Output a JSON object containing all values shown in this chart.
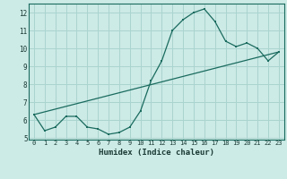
{
  "xlabel": "Humidex (Indice chaleur)",
  "background_color": "#cceae6",
  "grid_color": "#aad4cf",
  "line_color": "#1a6b5e",
  "curve1_x": [
    0,
    1,
    2,
    3,
    4,
    5,
    6,
    7,
    8,
    9,
    10,
    11,
    12,
    13,
    14,
    15,
    16,
    17,
    18,
    19,
    20,
    21,
    22,
    23
  ],
  "curve1_y": [
    6.3,
    5.4,
    5.6,
    6.2,
    6.2,
    5.6,
    5.5,
    5.2,
    5.3,
    5.6,
    6.5,
    8.2,
    9.3,
    11.0,
    11.6,
    12.0,
    12.2,
    11.5,
    10.4,
    10.1,
    10.3,
    10.0,
    9.3,
    9.8
  ],
  "curve2_x": [
    0,
    23
  ],
  "curve2_y": [
    6.3,
    9.8
  ],
  "xlim": [
    -0.5,
    23.5
  ],
  "ylim": [
    4.9,
    12.5
  ],
  "xticks": [
    0,
    1,
    2,
    3,
    4,
    5,
    6,
    7,
    8,
    9,
    10,
    11,
    12,
    13,
    14,
    15,
    16,
    17,
    18,
    19,
    20,
    21,
    22,
    23
  ],
  "yticks": [
    5,
    6,
    7,
    8,
    9,
    10,
    11,
    12
  ]
}
